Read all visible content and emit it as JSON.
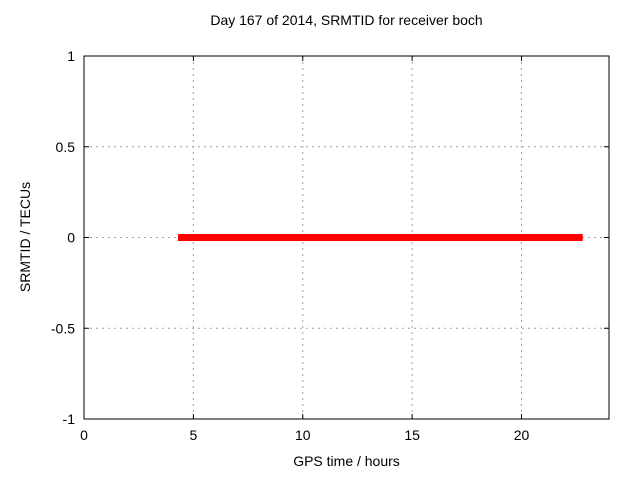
{
  "page": {
    "background": "#ffffff"
  },
  "chart_data": {
    "type": "line",
    "title": "Day 167 of 2014, SRMTID for receiver boch",
    "xlabel": "GPS time / hours",
    "ylabel": "SRMTID / TECUs",
    "xlim": [
      0,
      24
    ],
    "ylim": [
      -1,
      1
    ],
    "xticks": [
      {
        "v": 0,
        "label": "0"
      },
      {
        "v": 5,
        "label": "5"
      },
      {
        "v": 10,
        "label": "10"
      },
      {
        "v": 15,
        "label": "15"
      },
      {
        "v": 20,
        "label": "20"
      }
    ],
    "yticks": [
      {
        "v": -1,
        "label": "-1"
      },
      {
        "v": -0.5,
        "label": "-0.5"
      },
      {
        "v": 0,
        "label": "0"
      },
      {
        "v": 0.5,
        "label": "0.5"
      },
      {
        "v": 1,
        "label": "1"
      }
    ],
    "grid": true,
    "legend": "none",
    "colors": {
      "grid": "#a0a0a0",
      "border": "#000000",
      "text": "#000000",
      "series_red": "#ff0000"
    },
    "series": [
      {
        "name": "SRMTID",
        "type": "line",
        "color": "#ff0000",
        "line_width": 7,
        "points": [
          [
            4.3,
            0
          ],
          [
            22.8,
            0
          ]
        ]
      }
    ]
  }
}
